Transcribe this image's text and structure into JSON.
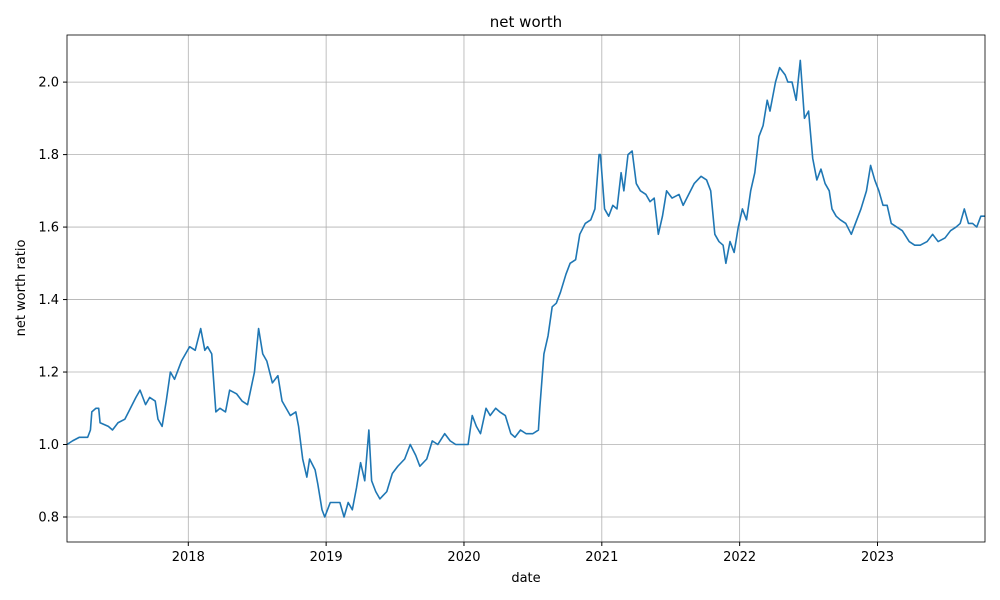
{
  "chart_data": {
    "type": "line",
    "title": "net worth",
    "x_label": "date",
    "y_label": "net worth ratio",
    "grid": true,
    "xlim": [
      2017.12,
      2023.78
    ],
    "xticks": [
      2018,
      2019,
      2020,
      2021,
      2022,
      2023
    ],
    "ylim": [
      0.731,
      2.13
    ],
    "yticks": [
      0.8,
      {
        "value": 1.0,
        "label": "1.0"
      },
      1.2,
      1.4,
      1.6,
      1.8,
      {
        "value": 2.0,
        "label": "2.0"
      }
    ],
    "series": [
      {
        "color": "#1f77b4",
        "x": [
          2017.12,
          2017.16,
          2017.21,
          2017.27,
          2017.29,
          2017.3,
          2017.33,
          2017.35,
          2017.36,
          2017.42,
          2017.45,
          2017.49,
          2017.54,
          2017.58,
          2017.62,
          2017.65,
          2017.69,
          2017.72,
          2017.76,
          2017.78,
          2017.81,
          2017.84,
          2017.87,
          2017.9,
          2017.93,
          2017.95,
          2017.98,
          2018.01,
          2018.05,
          2018.09,
          2018.12,
          2018.14,
          2018.17,
          2018.2,
          2018.23,
          2018.27,
          2018.3,
          2018.35,
          2018.39,
          2018.43,
          2018.48,
          2018.51,
          2018.54,
          2018.57,
          2018.61,
          2018.65,
          2018.68,
          2018.71,
          2018.74,
          2018.78,
          2018.8,
          2018.83,
          2018.86,
          2018.88,
          2018.92,
          2018.94,
          2018.97,
          2018.99,
          2019.03,
          2019.07,
          2019.1,
          2019.13,
          2019.16,
          2019.19,
          2019.22,
          2019.25,
          2019.28,
          2019.31,
          2019.33,
          2019.36,
          2019.39,
          2019.44,
          2019.48,
          2019.52,
          2019.57,
          2019.61,
          2019.65,
          2019.68,
          2019.73,
          2019.77,
          2019.81,
          2019.86,
          2019.9,
          2019.94,
          2019.99,
          2020.03,
          2020.06,
          2020.09,
          2020.12,
          2020.16,
          2020.19,
          2020.23,
          2020.26,
          2020.3,
          2020.34,
          2020.37,
          2020.41,
          2020.45,
          2020.5,
          2020.54,
          2020.55,
          2020.58,
          2020.61,
          2020.64,
          2020.67,
          2020.7,
          2020.74,
          2020.77,
          2020.81,
          2020.84,
          2020.88,
          2020.92,
          2020.95,
          2020.98,
          2020.99,
          2021.02,
          2021.05,
          2021.08,
          2021.11,
          2021.14,
          2021.16,
          2021.19,
          2021.22,
          2021.25,
          2021.28,
          2021.32,
          2021.35,
          2021.38,
          2021.41,
          2021.44,
          2021.47,
          2021.51,
          2021.56,
          2021.59,
          2021.63,
          2021.67,
          2021.72,
          2021.76,
          2021.79,
          2021.82,
          2021.85,
          2021.88,
          2021.9,
          2021.93,
          2021.96,
          2021.99,
          2022.02,
          2022.05,
          2022.08,
          2022.11,
          2022.14,
          2022.17,
          2022.2,
          2022.22,
          2022.26,
          2022.29,
          2022.33,
          2022.35,
          2022.38,
          2022.41,
          2022.44,
          2022.47,
          2022.5,
          2022.53,
          2022.56,
          2022.59,
          2022.62,
          2022.65,
          2022.67,
          2022.7,
          2022.73,
          2022.77,
          2022.81,
          2022.85,
          2022.88,
          2022.92,
          2022.95,
          2022.98,
          2023.01,
          2023.04,
          2023.07,
          2023.1,
          2023.14,
          2023.18,
          2023.23,
          2023.27,
          2023.31,
          2023.36,
          2023.4,
          2023.44,
          2023.49,
          2023.53,
          2023.57,
          2023.6,
          2023.63,
          2023.66,
          2023.69,
          2023.72,
          2023.75,
          2023.78
        ],
        "values": [
          1.0,
          1.01,
          1.02,
          1.02,
          1.04,
          1.09,
          1.1,
          1.1,
          1.06,
          1.05,
          1.04,
          1.06,
          1.07,
          1.1,
          1.13,
          1.15,
          1.11,
          1.13,
          1.12,
          1.07,
          1.05,
          1.12,
          1.2,
          1.18,
          1.21,
          1.23,
          1.25,
          1.27,
          1.26,
          1.32,
          1.26,
          1.27,
          1.25,
          1.09,
          1.1,
          1.09,
          1.15,
          1.14,
          1.12,
          1.11,
          1.2,
          1.32,
          1.25,
          1.23,
          1.17,
          1.19,
          1.12,
          1.1,
          1.08,
          1.09,
          1.05,
          0.96,
          0.91,
          0.96,
          0.93,
          0.89,
          0.82,
          0.8,
          0.84,
          0.84,
          0.84,
          0.8,
          0.84,
          0.82,
          0.88,
          0.95,
          0.9,
          1.04,
          0.9,
          0.87,
          0.85,
          0.87,
          0.92,
          0.94,
          0.96,
          1.0,
          0.97,
          0.94,
          0.96,
          1.01,
          1.0,
          1.03,
          1.01,
          1.0,
          1.0,
          1.0,
          1.08,
          1.05,
          1.03,
          1.1,
          1.08,
          1.1,
          1.09,
          1.08,
          1.03,
          1.02,
          1.04,
          1.03,
          1.03,
          1.04,
          1.1,
          1.25,
          1.3,
          1.38,
          1.39,
          1.42,
          1.47,
          1.5,
          1.51,
          1.58,
          1.61,
          1.62,
          1.65,
          1.8,
          1.8,
          1.65,
          1.63,
          1.66,
          1.65,
          1.75,
          1.7,
          1.8,
          1.81,
          1.72,
          1.7,
          1.69,
          1.67,
          1.68,
          1.58,
          1.63,
          1.7,
          1.68,
          1.69,
          1.66,
          1.69,
          1.72,
          1.74,
          1.73,
          1.7,
          1.58,
          1.56,
          1.55,
          1.5,
          1.56,
          1.53,
          1.6,
          1.65,
          1.62,
          1.7,
          1.75,
          1.85,
          1.88,
          1.95,
          1.92,
          2.0,
          2.04,
          2.02,
          2.0,
          2.0,
          1.95,
          2.06,
          1.9,
          1.92,
          1.79,
          1.73,
          1.76,
          1.72,
          1.7,
          1.65,
          1.63,
          1.62,
          1.61,
          1.58,
          1.62,
          1.65,
          1.7,
          1.77,
          1.73,
          1.7,
          1.66,
          1.66,
          1.61,
          1.6,
          1.59,
          1.56,
          1.55,
          1.55,
          1.56,
          1.58,
          1.56,
          1.57,
          1.59,
          1.6,
          1.61,
          1.65,
          1.61,
          1.61,
          1.6,
          1.63,
          1.63
        ]
      }
    ]
  }
}
